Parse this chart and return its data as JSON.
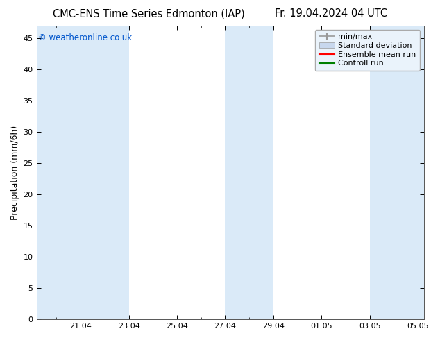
{
  "title_left": "CMC-ENS Time Series Edmonton (IAP)",
  "title_right": "Fr. 19.04.2024 04 UTC",
  "ylabel": "Precipitation (mm/6h)",
  "copyright_text": "© weatheronline.co.uk",
  "copyright_color": "#0055cc",
  "background_color": "#ffffff",
  "plot_bg_color": "#ffffff",
  "ylim": [
    0,
    47
  ],
  "yticks": [
    0,
    5,
    10,
    15,
    20,
    25,
    30,
    35,
    40,
    45
  ],
  "x_min": 19.1667,
  "x_max": 35.25,
  "xtick_positions": [
    21,
    23,
    25,
    27,
    29,
    31,
    33,
    35
  ],
  "xtick_labels": [
    "21.04",
    "23.04",
    "25.04",
    "27.04",
    "29.04",
    "01.05",
    "03.05",
    "05.05"
  ],
  "shaded_bands": [
    [
      19.1667,
      21.0
    ],
    [
      21.0,
      23.0
    ],
    [
      27.0,
      29.0
    ],
    [
      33.0,
      35.25
    ]
  ],
  "band_color": "#daeaf8",
  "legend_items": [
    {
      "label": "min/max",
      "type": "minmax",
      "color": "#999999"
    },
    {
      "label": "Standard deviation",
      "type": "patch",
      "color": "#c8d8ee"
    },
    {
      "label": "Ensemble mean run",
      "type": "line",
      "color": "#ff0000"
    },
    {
      "label": "Controll run",
      "type": "line",
      "color": "#008000"
    }
  ],
  "title_fontsize": 10.5,
  "ylabel_fontsize": 9,
  "tick_fontsize": 8,
  "legend_fontsize": 8,
  "copyright_fontsize": 8.5
}
